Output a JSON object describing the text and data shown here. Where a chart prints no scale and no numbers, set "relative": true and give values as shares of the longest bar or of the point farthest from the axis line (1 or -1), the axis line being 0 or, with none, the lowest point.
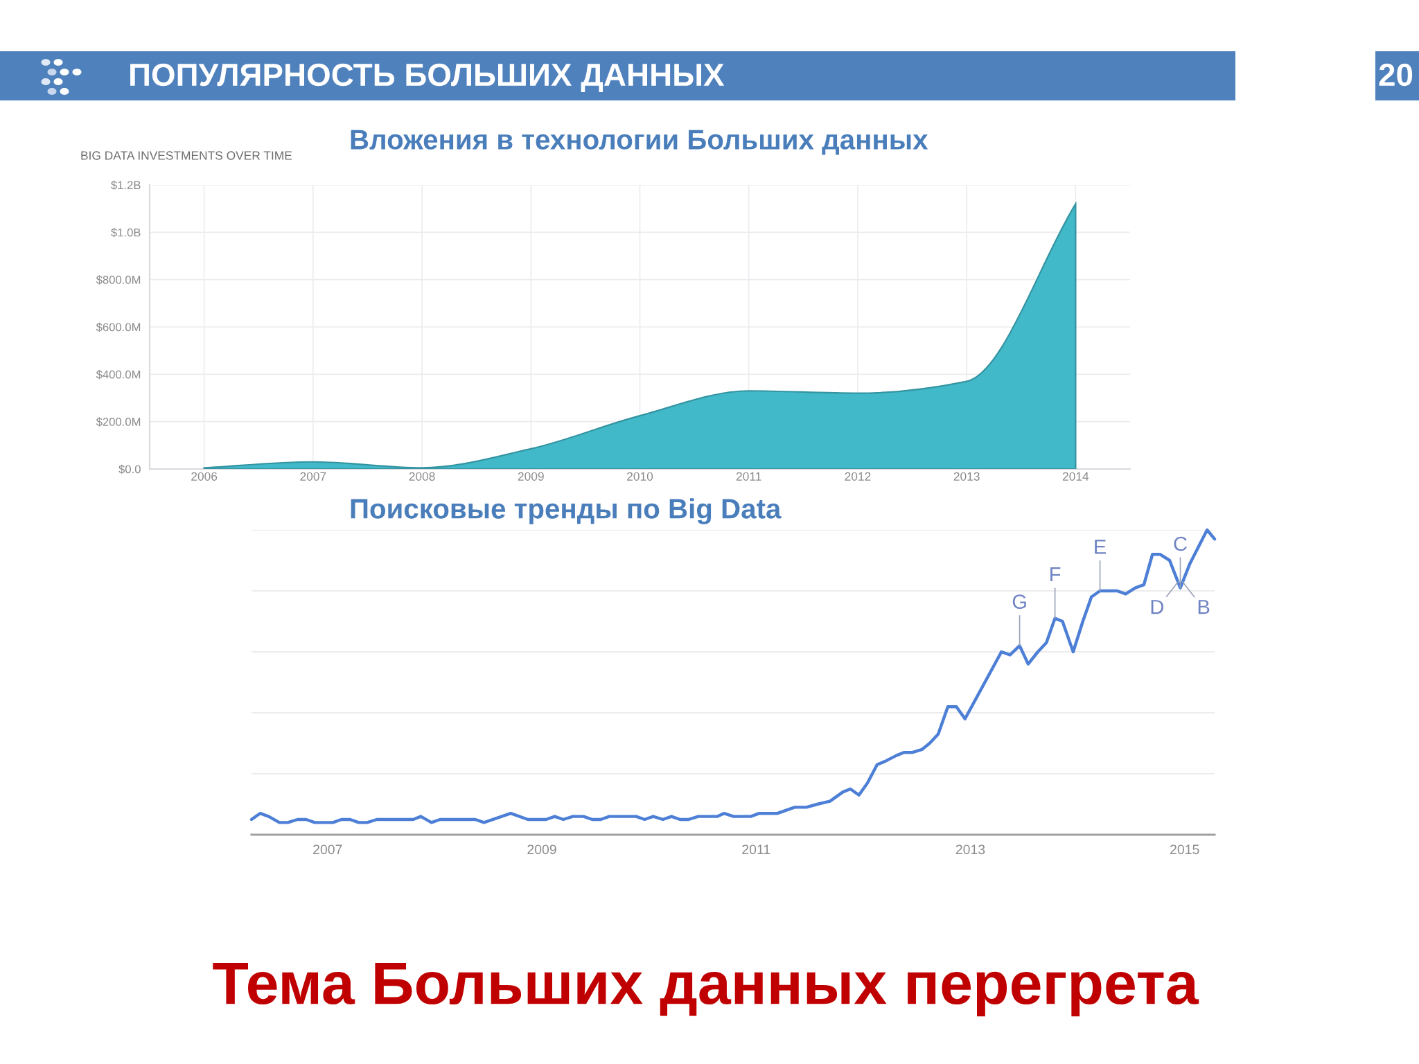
{
  "chart_data": [
    {
      "type": "area",
      "title": "Вложения в технологии Больших данных",
      "subtitle": "BIG DATA INVESTMENTS OVER TIME",
      "annotations": [
        "ПОПУЛЯРНОСТЬ БОЛЬШИХ ДАННЫХ",
        "20"
      ],
      "x": [
        2006,
        2007,
        2008,
        2009,
        2010,
        2011,
        2012,
        2013,
        2014
      ],
      "values": [
        5000000,
        30000000,
        5000000,
        85000000,
        225000000,
        330000000,
        320000000,
        370000000,
        1120000000
      ],
      "color": "#41b9c9",
      "xlim": [
        2005.5,
        2014.5
      ],
      "xticks": [
        2006,
        2007,
        2008,
        2009,
        2010,
        2011,
        2012,
        2013,
        2014
      ],
      "ylim": [
        0,
        1200000000
      ],
      "yticks": [
        {
          "value": 0,
          "label": "$0.0"
        },
        {
          "value": 200000000,
          "label": "$200.0M"
        },
        {
          "value": 400000000,
          "label": "$400.0M"
        },
        {
          "value": 600000000,
          "label": "$600.0M"
        },
        {
          "value": 800000000,
          "label": "$800.0M"
        },
        {
          "value": 1000000000,
          "label": "$1.0B"
        },
        {
          "value": 1200000000,
          "label": "$1.2B"
        }
      ],
      "grid": true
    },
    {
      "type": "line",
      "title": "Поисковые тренды по Big Data",
      "annotations": [
        {
          "text": "G",
          "x": 2013.46,
          "y": 0.62
        },
        {
          "text": "F",
          "x": 2013.79,
          "y": 0.71
        },
        {
          "text": "E",
          "x": 2014.21,
          "y": 0.8
        },
        {
          "text": "D",
          "x": 2014.94,
          "y": 0.83
        },
        {
          "text": "C",
          "x": 2014.96,
          "y": 0.81
        },
        {
          "text": "B",
          "x": 2014.98,
          "y": 0.83
        },
        "Тема Больших данных перегрета"
      ],
      "relative": true,
      "x": [
        2006.29,
        2006.37,
        2006.45,
        2006.55,
        2006.63,
        2006.72,
        2006.8,
        2006.88,
        2007.05,
        2007.13,
        2007.21,
        2007.29,
        2007.37,
        2007.46,
        2007.8,
        2007.87,
        2007.97,
        2008.05,
        2008.38,
        2008.46,
        2008.71,
        2008.87,
        2009.04,
        2009.12,
        2009.2,
        2009.29,
        2009.39,
        2009.47,
        2009.55,
        2009.63,
        2009.88,
        2009.96,
        2010.04,
        2010.13,
        2010.21,
        2010.29,
        2010.37,
        2010.46,
        2010.64,
        2010.7,
        2010.79,
        2010.95,
        2011.03,
        2011.2,
        2011.36,
        2011.47,
        2011.57,
        2011.69,
        2011.81,
        2011.88,
        2011.96,
        2012.04,
        2012.13,
        2012.2,
        2012.31,
        2012.38,
        2012.46,
        2012.55,
        2012.62,
        2012.7,
        2012.79,
        2012.87,
        2012.95,
        2013.29,
        2013.37,
        2013.46,
        2013.54,
        2013.63,
        2013.71,
        2013.79,
        2013.86,
        2013.96,
        2014.05,
        2014.13,
        2014.21,
        2014.37,
        2014.45,
        2014.54,
        2014.62,
        2014.7,
        2014.77,
        2014.86,
        2014.96,
        2015.05,
        2015.21,
        2015.28
      ],
      "values": [
        0.05,
        0.07,
        0.06,
        0.04,
        0.04,
        0.05,
        0.05,
        0.04,
        0.04,
        0.05,
        0.05,
        0.04,
        0.04,
        0.05,
        0.05,
        0.06,
        0.04,
        0.05,
        0.05,
        0.04,
        0.07,
        0.05,
        0.05,
        0.06,
        0.05,
        0.06,
        0.06,
        0.05,
        0.05,
        0.06,
        0.06,
        0.05,
        0.06,
        0.05,
        0.06,
        0.05,
        0.05,
        0.06,
        0.06,
        0.07,
        0.06,
        0.06,
        0.07,
        0.07,
        0.09,
        0.09,
        0.1,
        0.11,
        0.14,
        0.15,
        0.13,
        0.17,
        0.23,
        0.24,
        0.26,
        0.27,
        0.27,
        0.28,
        0.3,
        0.33,
        0.42,
        0.42,
        0.38,
        0.6,
        0.59,
        0.62,
        0.56,
        0.6,
        0.63,
        0.71,
        0.7,
        0.6,
        0.7,
        0.78,
        0.8,
        0.8,
        0.79,
        0.81,
        0.82,
        0.92,
        0.92,
        0.9,
        0.81,
        0.89,
        1.0,
        0.97
      ],
      "color": "#4d7fd6",
      "xlim": [
        2006.29,
        2015.28
      ],
      "xticks": [
        2007,
        2009,
        2011,
        2013,
        2015
      ],
      "grid": "y",
      "tick_labels": "x"
    }
  ]
}
